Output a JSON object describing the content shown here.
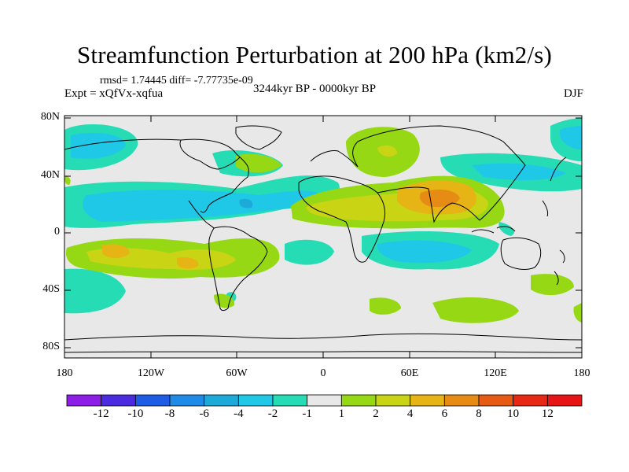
{
  "title": "Streamfunction Perturbation at 200 hPa (km2/s)",
  "stats_line": "rmsd= 1.74445  diff= -7.77735e-09",
  "experiment": "Expt = xQfVx-xqfua",
  "period": "3244kyr BP - 0000kyr BP",
  "season": "DJF",
  "lat_labels": [
    "80N",
    "40N",
    "0",
    "40S",
    "80S"
  ],
  "lon_labels": [
    "180",
    "120W",
    "60W",
    "0",
    "60E",
    "120E",
    "180"
  ],
  "colorbar": {
    "labels": [
      "-12",
      "-10",
      "-8",
      "-6",
      "-4",
      "-2",
      "-1",
      "1",
      "2",
      "4",
      "6",
      "8",
      "10",
      "12"
    ],
    "colors": [
      "#8c1ee6",
      "#4b2be0",
      "#1e5ce6",
      "#1e8ce6",
      "#1eaad8",
      "#1ec8e6",
      "#26dcb4",
      "#e8e8e8",
      "#96d814",
      "#c8d414",
      "#e6b414",
      "#e68c14",
      "#e65a14",
      "#e62814",
      "#e61414"
    ]
  },
  "field_colors": {
    "land": "#e8e8e8",
    "neg1": "#26dcb4",
    "neg2": "#1ec8e6",
    "neg3": "#1eaad8",
    "pos1": "#96d814",
    "pos2": "#c8d414",
    "pos3": "#e6b414",
    "pos4": "#e68c14"
  }
}
